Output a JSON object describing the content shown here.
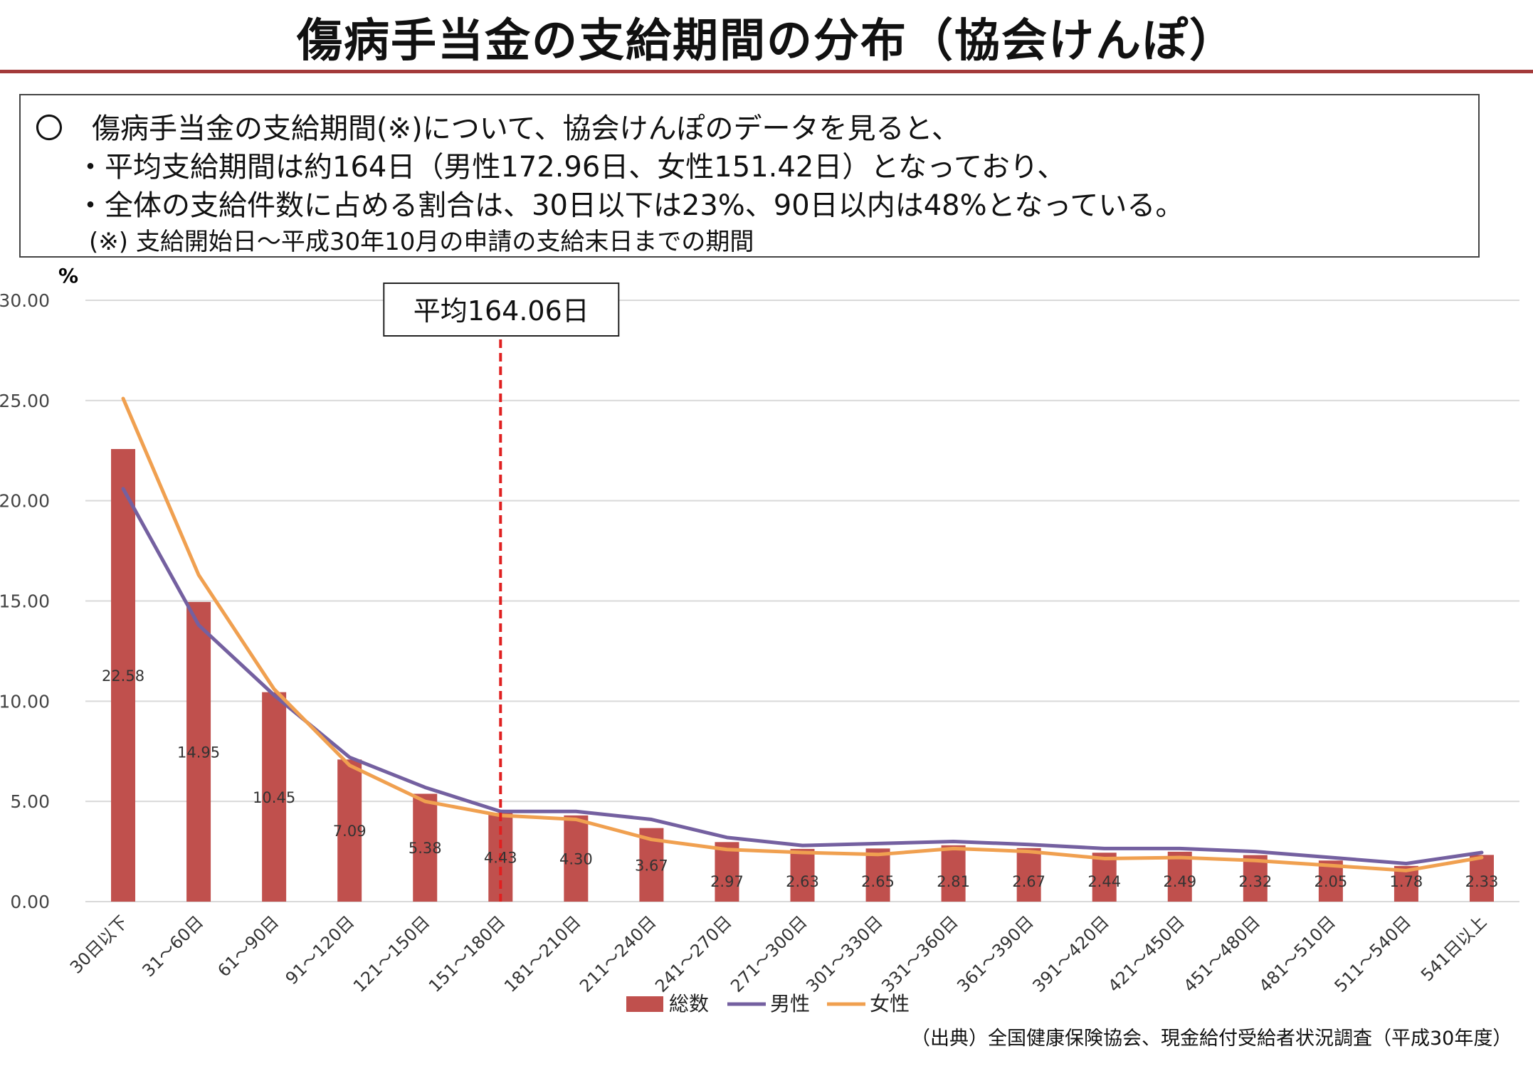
{
  "header": {
    "title": "傷病手当金の支給期間の分布（協会けんぽ）"
  },
  "summary": {
    "line1": "〇　傷病手当金の支給期間(※)について、協会けんぽのデータを見ると、",
    "line2": "・平均支給期間は約164日（男性172.96日、女性151.42日）となっており、",
    "line3": "・全体の支給件数に占める割合は、30日以下は23%、90日以内は48%となっている。",
    "line4": "(※) 支給開始日～平成30年10月の申請の支給末日までの期間"
  },
  "source": "（出典）全国健康保険協会、現金給付受給者状況調査（平成30年度）",
  "colors": {
    "bar": "#c0504d",
    "male": "#7460a0",
    "female": "#f0a050",
    "average_line": "#e02020",
    "gridline": "#d9d9d9"
  },
  "chart_data": {
    "type": "bar",
    "ylabel": "%",
    "ylim": [
      0,
      30
    ],
    "yticks": [
      "0.00",
      "5.00",
      "10.00",
      "15.00",
      "20.00",
      "25.00",
      "30.00"
    ],
    "grid": true,
    "legend_position": "bottom",
    "categories": [
      "30日以下",
      "31～60日",
      "61～90日",
      "91～120日",
      "121～150日",
      "151～180日",
      "181～210日",
      "211～240日",
      "241～270日",
      "271～300日",
      "301～330日",
      "331～360日",
      "361～390日",
      "391～420日",
      "421～450日",
      "451～480日",
      "481～510日",
      "511～540日",
      "541日以上"
    ],
    "series": [
      {
        "name": "総数",
        "kind": "bar",
        "values": [
          22.58,
          14.95,
          10.45,
          7.09,
          5.38,
          4.43,
          4.3,
          3.67,
          2.97,
          2.63,
          2.65,
          2.81,
          2.67,
          2.44,
          2.49,
          2.32,
          2.05,
          1.78,
          2.33
        ]
      },
      {
        "name": "男性",
        "kind": "line",
        "values": [
          20.6,
          13.8,
          10.3,
          7.2,
          5.7,
          4.5,
          4.5,
          4.1,
          3.2,
          2.8,
          2.9,
          3.0,
          2.85,
          2.65,
          2.65,
          2.5,
          2.2,
          1.9,
          2.45
        ]
      },
      {
        "name": "女性",
        "kind": "line",
        "values": [
          25.1,
          16.3,
          10.6,
          6.8,
          5.0,
          4.3,
          4.1,
          3.1,
          2.6,
          2.45,
          2.35,
          2.65,
          2.5,
          2.15,
          2.2,
          2.05,
          1.8,
          1.55,
          2.2
        ]
      }
    ],
    "annotation": {
      "text": "平均164.06日",
      "between_categories": [
        "151～180日",
        "151～180日"
      ]
    }
  }
}
